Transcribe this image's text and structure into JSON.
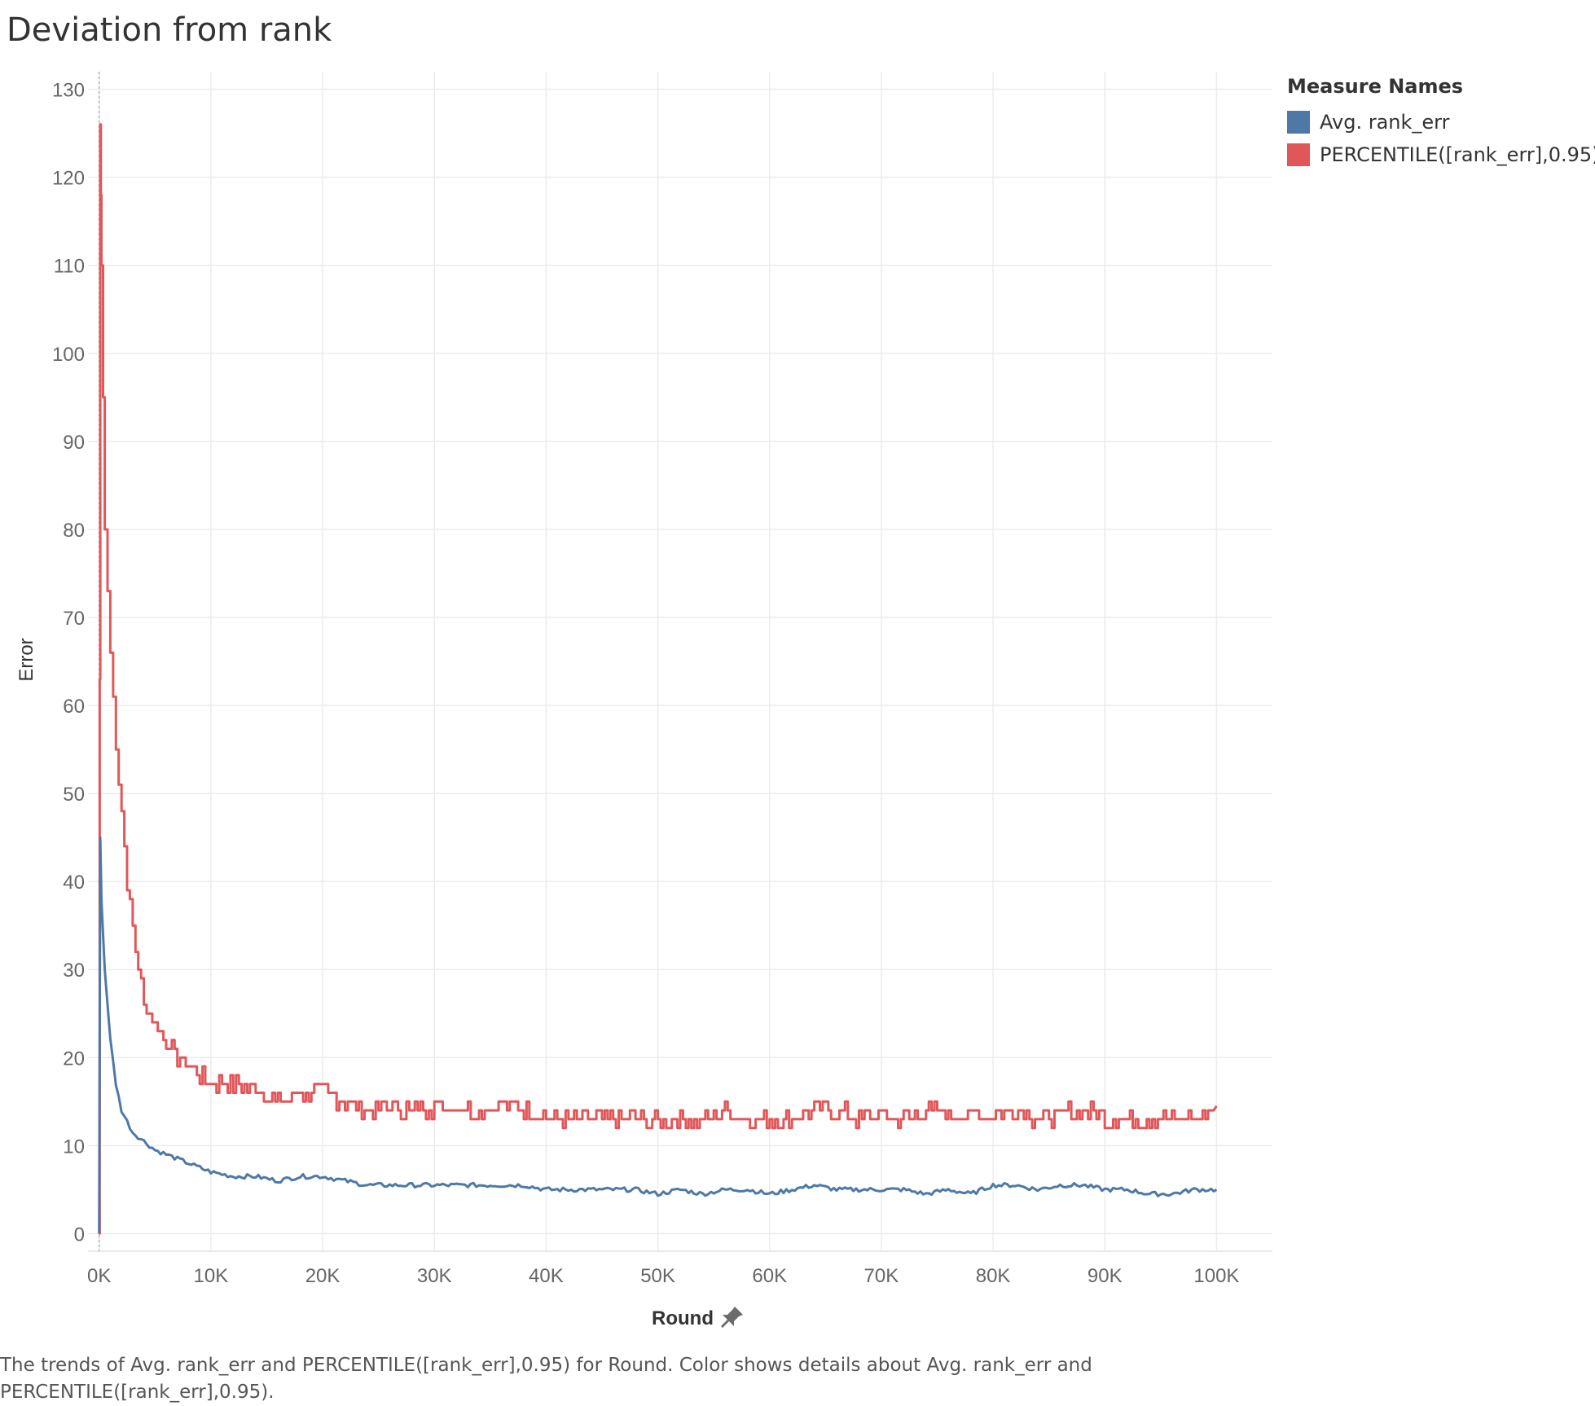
{
  "title": "Deviation from rank",
  "legend": {
    "title": "Measure Names",
    "items": [
      {
        "label": "Avg. rank_err",
        "color": "#4e79a7"
      },
      {
        "label": "PERCENTILE([rank_err],0.95)",
        "color": "#e15759"
      }
    ]
  },
  "caption": "The trends of Avg. rank_err and PERCENTILE([rank_err],0.95) for Round.  Color shows details about Avg. rank_err and PERCENTILE([rank_err],0.95).",
  "chart_data": {
    "type": "line",
    "xlabel": "Round",
    "ylabel": "Error",
    "xlim": [
      -1000,
      105000
    ],
    "ylim": [
      -2,
      132
    ],
    "x_ticks": [
      0,
      10000,
      20000,
      30000,
      40000,
      50000,
      60000,
      70000,
      80000,
      90000,
      100000
    ],
    "x_tick_labels": [
      "0K",
      "10K",
      "20K",
      "30K",
      "40K",
      "50K",
      "60K",
      "70K",
      "80K",
      "90K",
      "100K"
    ],
    "y_ticks": [
      0,
      10,
      20,
      30,
      40,
      50,
      60,
      70,
      80,
      90,
      100,
      110,
      120,
      130
    ],
    "y_tick_labels": [
      "0",
      "10",
      "20",
      "30",
      "40",
      "50",
      "60",
      "70",
      "80",
      "90",
      "100",
      "110",
      "120",
      "130"
    ],
    "grid": true,
    "legend_position": "right",
    "series": [
      {
        "name": "Avg. rank_err",
        "color": "#4e79a7",
        "x": [
          0,
          100,
          200,
          500,
          1000,
          1500,
          2000,
          3000,
          4000,
          5000,
          6000,
          7000,
          8000,
          9000,
          10000,
          12000,
          14000,
          16000,
          18000,
          20000,
          22000,
          24000,
          26000,
          28000,
          30000,
          32000,
          34000,
          36000,
          38000,
          40000,
          42000,
          44000,
          46000,
          48000,
          50000,
          52000,
          54000,
          56000,
          58000,
          60000,
          62000,
          64000,
          66000,
          68000,
          70000,
          72000,
          74000,
          76000,
          78000,
          80000,
          82000,
          84000,
          86000,
          88000,
          90000,
          92000,
          94000,
          96000,
          98000,
          100000
        ],
        "y": [
          0,
          45,
          38,
          30,
          22,
          17,
          14,
          11.5,
          10.5,
          9.5,
          9,
          8.5,
          8,
          7.5,
          7,
          6.5,
          6.5,
          6,
          6.5,
          6.5,
          6,
          5.5,
          5.5,
          5.5,
          5.5,
          5.5,
          5.5,
          5.5,
          5.5,
          5,
          5,
          5,
          5,
          5,
          4.5,
          5,
          4.5,
          5,
          5,
          4.5,
          5,
          5.5,
          5,
          5,
          5,
          5,
          4.5,
          5,
          4.5,
          5.5,
          5.5,
          5,
          5.5,
          5.5,
          5,
          5,
          4.5,
          4.5,
          5,
          5
        ]
      },
      {
        "name": "PERCENTILE([rank_err],0.95)",
        "color": "#e15759",
        "x": [
          0,
          100,
          200,
          500,
          1000,
          1500,
          2000,
          2500,
          3000,
          3500,
          4000,
          5000,
          6000,
          7000,
          8000,
          9000,
          10000,
          12000,
          14000,
          16000,
          18000,
          20000,
          22000,
          24000,
          26000,
          28000,
          30000,
          32000,
          34000,
          36000,
          38000,
          40000,
          42000,
          44000,
          46000,
          48000,
          50000,
          52000,
          54000,
          56000,
          58000,
          60000,
          62000,
          64000,
          66000,
          68000,
          70000,
          72000,
          74000,
          76000,
          78000,
          80000,
          82000,
          84000,
          86000,
          88000,
          90000,
          92000,
          94000,
          96000,
          98000,
          100000
        ],
        "y": [
          0,
          126,
          110,
          80,
          66,
          56,
          48,
          40,
          35,
          30,
          26,
          24,
          22,
          20,
          19,
          18,
          17,
          17,
          16.5,
          15,
          16,
          16,
          15,
          14,
          14.5,
          14,
          14.5,
          14.5,
          14,
          15,
          14,
          13.5,
          13,
          13,
          13,
          13,
          12.5,
          13,
          13,
          14,
          13,
          13,
          13,
          14,
          14,
          13,
          13.5,
          13,
          14,
          13.5,
          13.5,
          13.5,
          14,
          13,
          13.5,
          14,
          13,
          13,
          13,
          13,
          13,
          14.5
        ]
      }
    ]
  }
}
